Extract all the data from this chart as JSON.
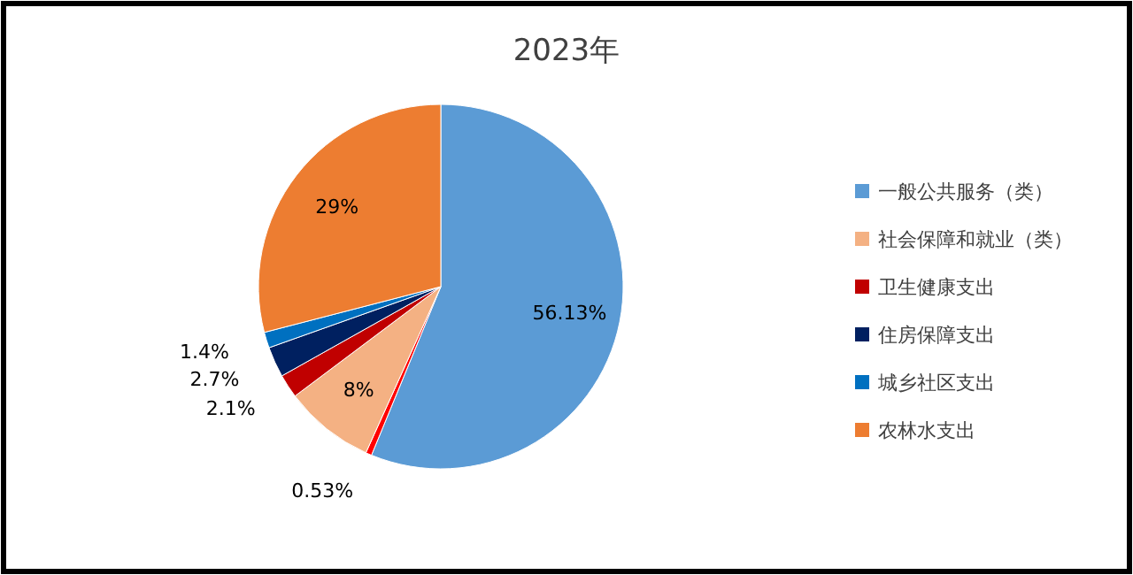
{
  "chart_data": {
    "type": "pie",
    "title": "2023年",
    "categories": [
      "一般公共服务（类）",
      null,
      "社会保障和就业（类）",
      "卫生健康支出",
      "住房保障支出",
      "城乡社区支出",
      "农林水支出"
    ],
    "values": [
      56.13,
      0.53,
      8,
      2.1,
      2.7,
      1.4,
      29
    ],
    "colors": [
      "#5b9bd5",
      "#ff0000",
      "#f4b183",
      "#c00000",
      "#002060",
      "#0070c0",
      "#ed7d31"
    ],
    "value_labels": [
      "56.13%",
      "0.53%",
      "8%",
      "2.1%",
      "2.7%",
      "1.4%",
      "29%"
    ],
    "legend": "right"
  }
}
